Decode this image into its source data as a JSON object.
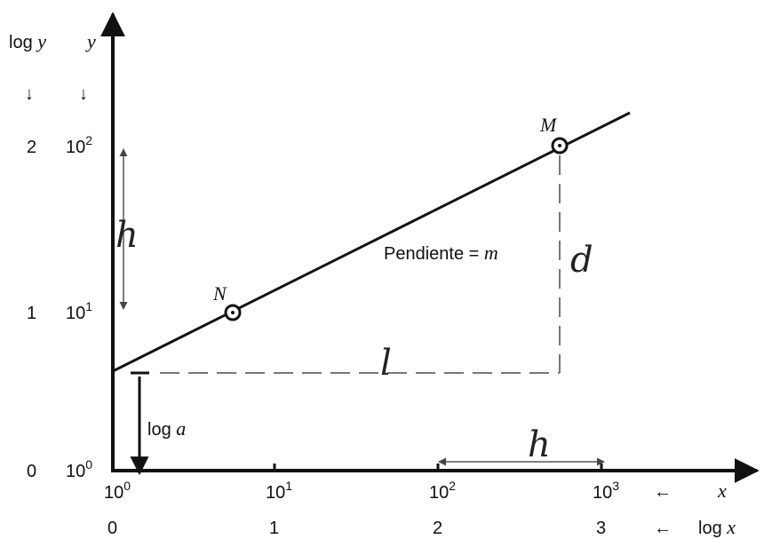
{
  "y_axis_header": {
    "log_prefix": "log ",
    "var": "y",
    "right": "y",
    "arrow": "↓"
  },
  "y_ticks": [
    {
      "log": "0",
      "base": "10",
      "exp": "0"
    },
    {
      "log": "1",
      "base": "10",
      "exp": "1"
    },
    {
      "log": "2",
      "base": "10",
      "exp": "2"
    }
  ],
  "x_ticks": [
    {
      "log": "0",
      "base": "10",
      "exp": "0"
    },
    {
      "log": "1",
      "base": "10",
      "exp": "1"
    },
    {
      "log": "2",
      "base": "10",
      "exp": "2"
    },
    {
      "log": "3",
      "base": "10",
      "exp": "3"
    }
  ],
  "x_axis_labels": {
    "arrow": "←",
    "x": "x",
    "log_prefix": "log ",
    "log_var": "x"
  },
  "points": {
    "N": "N",
    "M": "M"
  },
  "slope_label": {
    "text": "Pendiente = ",
    "var": "m"
  },
  "intercept_label": {
    "text": "log ",
    "var": "a"
  },
  "handwritten": {
    "h_left": "h",
    "l": "l",
    "d": "d",
    "h_bottom": "h"
  }
}
